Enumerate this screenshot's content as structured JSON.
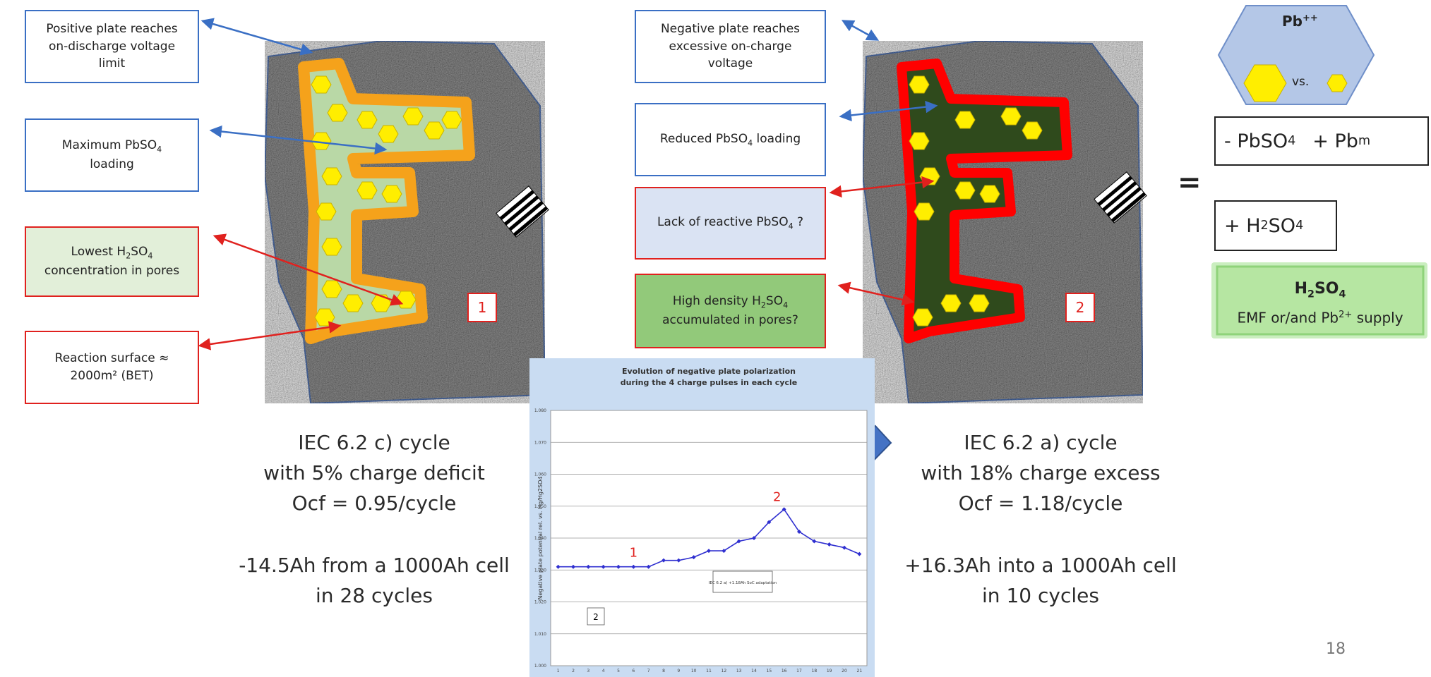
{
  "left_callouts": [
    {
      "text": [
        "Positive plate reaches on-discharge voltage limit"
      ]
    },
    {
      "text": [
        "Maximum PbSO",
        "4",
        " loading"
      ]
    },
    {
      "text": [
        "Lowest H",
        "2",
        "SO",
        "4",
        " concentration in pores"
      ]
    },
    {
      "text": [
        "Reaction surface ≈ 2000m² (BET)"
      ]
    }
  ],
  "right_callouts": [
    {
      "text": [
        "Negative plate reaches excessive on-charge voltage"
      ]
    },
    {
      "text": [
        "Reduced PbSO",
        "4",
        " loading"
      ]
    },
    {
      "text": [
        "Lack of  reactive PbSO",
        "4",
        " ?"
      ]
    },
    {
      "text": [
        "High density H",
        "2",
        "SO",
        "4",
        " accumulated in pores?"
      ]
    }
  ],
  "plate_labels": [
    "1",
    "2"
  ],
  "left_caption": [
    "IEC 6.2 c) cycle",
    "with 5% charge deficit",
    "Ocf = 0.95/cycle",
    "-14.5Ah from a 1000Ah cell",
    "in 28 cycles"
  ],
  "right_caption": [
    "IEC 6.2 a) cycle",
    "with 18% charge excess",
    "Ocf = 1.18/cycle",
    "+16.3Ah into a 1000Ah cell",
    "in 10 cycles"
  ],
  "hexagon": {
    "label": [
      "Pb",
      "++"
    ],
    "vs": "vs."
  },
  "equals": "=",
  "formula_1": [
    "- PbSO",
    "4",
    "+ Pb",
    "m"
  ],
  "formula_2": [
    "+ H",
    "2",
    "SO",
    "4"
  ],
  "result": {
    "title": [
      "H",
      "2",
      "SO",
      "4"
    ],
    "text": [
      "EMF or/and Pb",
      "2+",
      " supply"
    ]
  },
  "page_number": "18",
  "chart_data": {
    "type": "line",
    "title": [
      "Evolution of negative plate polarization",
      "during the 4 charge pulses in each cycle"
    ],
    "y_label": "Negative plate potential rel. vs. Hg/Hg2SO4",
    "categories": [
      "1",
      "2",
      "3",
      "4",
      "5",
      "6",
      "7",
      "8",
      "9",
      "10",
      "11",
      "12",
      "13",
      "14",
      "15",
      "16",
      "17",
      "18",
      "19",
      "20",
      "21"
    ],
    "series": [
      {
        "color": "#2f2fd0",
        "values": [
          1.031,
          1.031,
          1.031,
          1.031,
          1.031,
          1.031,
          1.031,
          1.033,
          1.033,
          1.034,
          1.036,
          1.036,
          1.039,
          1.04,
          1.045,
          1.049,
          1.042,
          1.039,
          1.038,
          1.037,
          1.035
        ]
      }
    ],
    "ylim": [
      1.0,
      1.08
    ],
    "yticks": [
      {
        "value": 1,
        "label": "1.000"
      },
      {
        "value": 1.01,
        "label": "1.010"
      },
      {
        "value": 1.02,
        "label": "1.020"
      },
      {
        "value": 1.03,
        "label": "1.030"
      },
      {
        "value": 1.04,
        "label": "1.040"
      },
      {
        "value": 1.05,
        "label": "1.050"
      },
      {
        "value": 1.06,
        "label": "1.060"
      },
      {
        "value": 1.07,
        "label": "1.070"
      },
      {
        "value": 1.08,
        "label": "1.080"
      }
    ],
    "grid": true,
    "annotations": [
      "1",
      "2",
      "IEC 6.2 a) +1.18Ah SoC adaptation",
      "2"
    ]
  }
}
